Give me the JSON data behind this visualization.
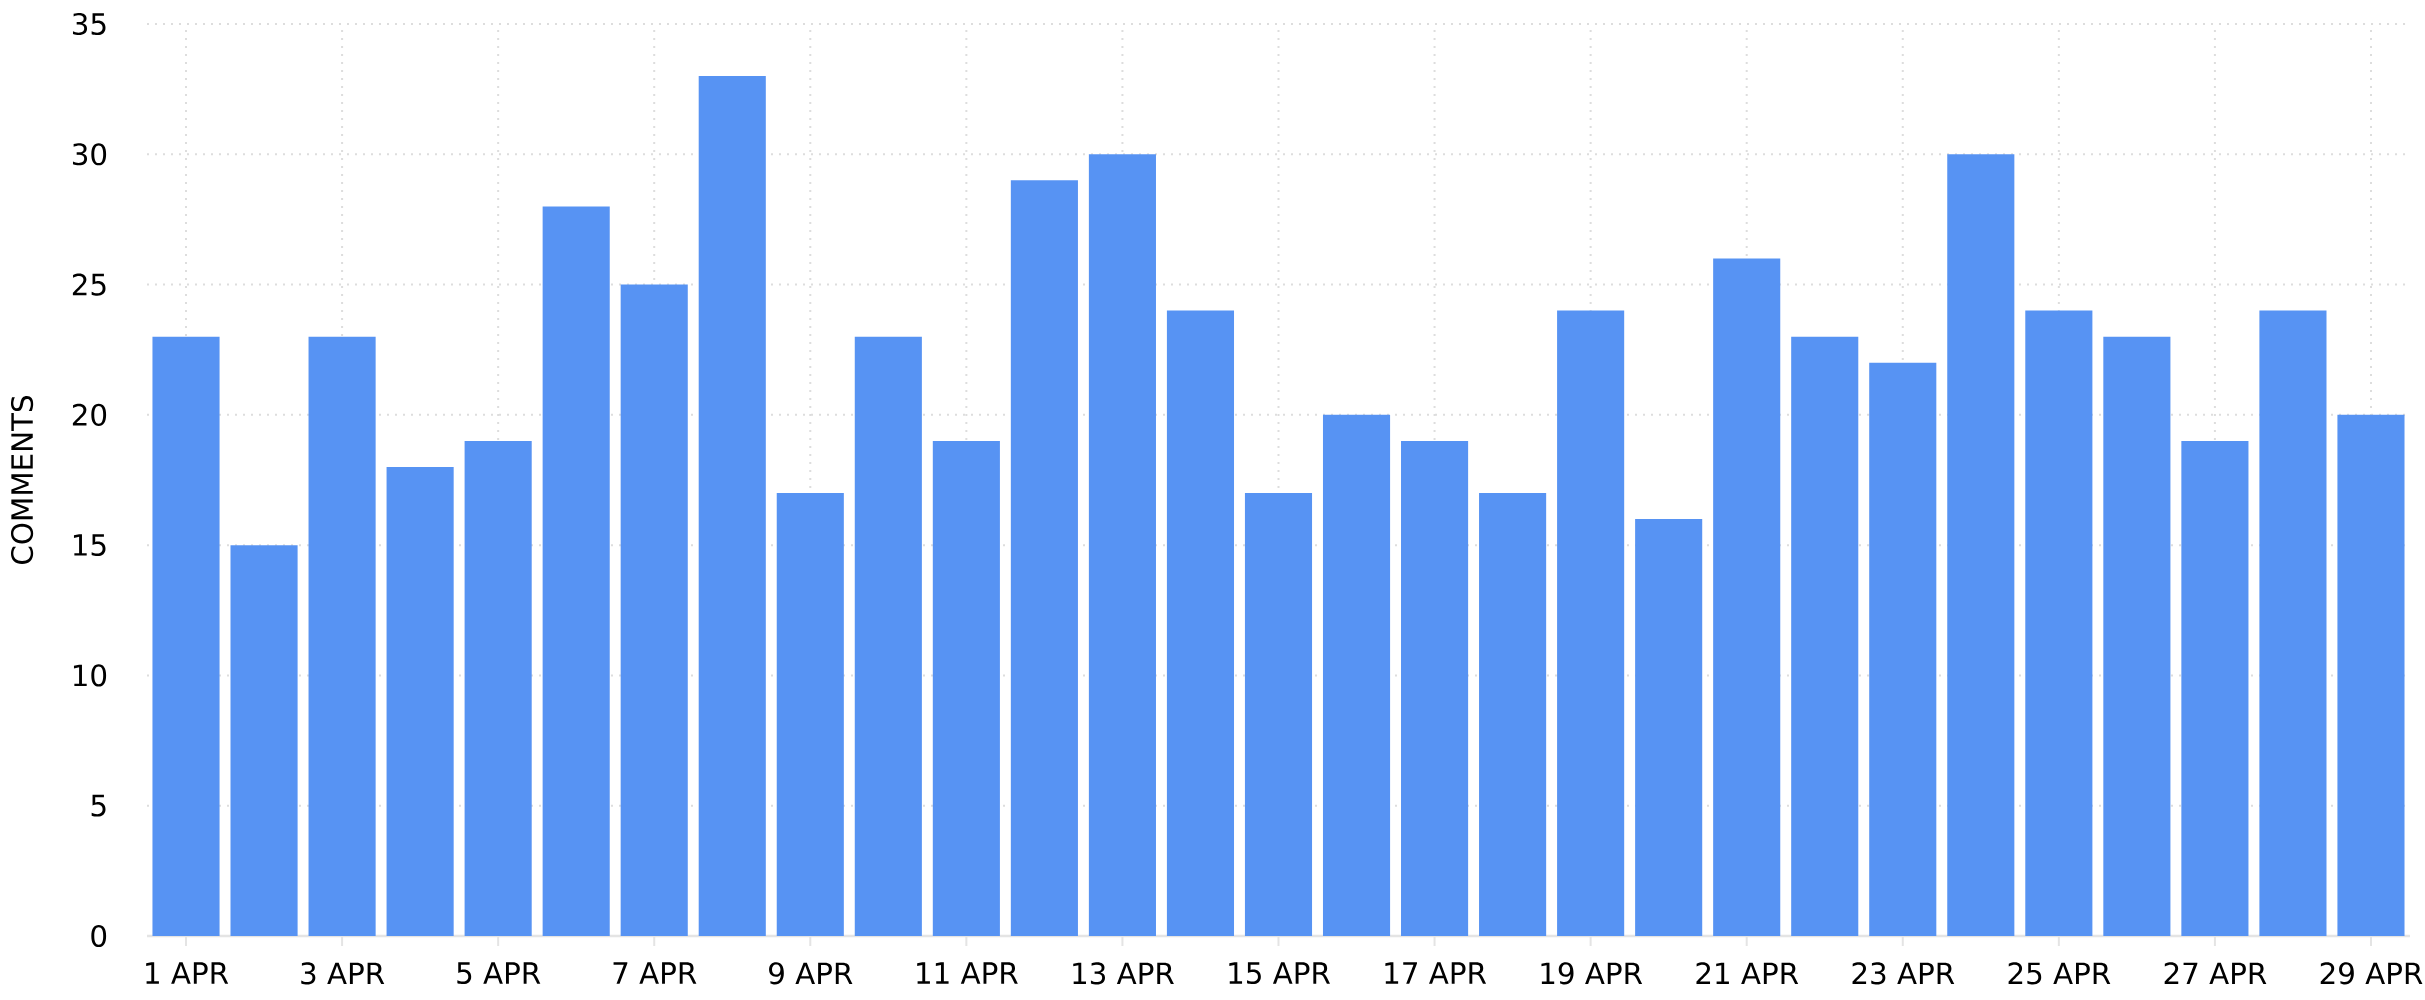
{
  "chart_data": {
    "type": "bar",
    "ylabel": "COMMENTS",
    "categories": [
      "1 APR",
      null,
      "3 APR",
      null,
      "5 APR",
      null,
      "7 APR",
      null,
      "9 APR",
      null,
      "11 APR",
      null,
      "13 APR",
      null,
      "15 APR",
      null,
      "17 APR",
      null,
      "19 APR",
      null,
      "21 APR",
      null,
      "23 APR",
      null,
      "25 APR",
      null,
      "27 APR",
      null,
      "29 APR"
    ],
    "values": [
      23,
      15,
      23,
      18,
      19,
      28,
      25,
      33,
      17,
      23,
      19,
      29,
      30,
      24,
      17,
      20,
      19,
      17,
      24,
      16,
      26,
      23,
      22,
      30,
      24,
      23,
      19,
      24,
      20
    ],
    "color": "#5793f3",
    "ylim": [
      0,
      35
    ],
    "yticks": [
      0,
      5,
      10,
      15,
      20,
      25,
      30,
      35
    ],
    "grid": true
  }
}
